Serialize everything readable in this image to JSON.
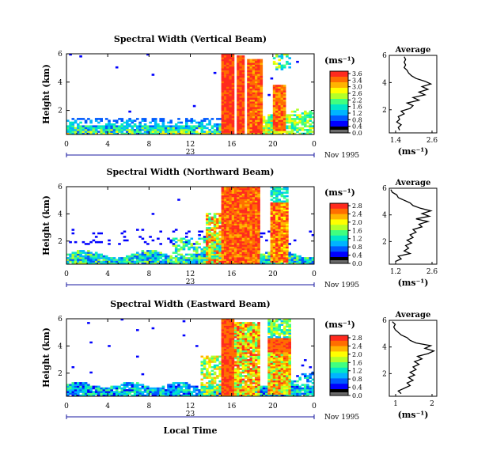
{
  "figure": {
    "date_label": "Nov 1995",
    "day_label": "23",
    "x_axis_title": "Local Time"
  },
  "chart_data": [
    {
      "type": "heatmap",
      "title": "Spectral Width (Vertical Beam)",
      "ylabel": "Height (km)",
      "xlabel": "Local Time",
      "x_ticks": [
        "0",
        "4",
        "8",
        "12",
        "16",
        "20",
        "0"
      ],
      "y_ticks": [
        "2",
        "4",
        "6"
      ],
      "xlim": [
        0,
        24
      ],
      "ylim": [
        0.3,
        6
      ],
      "colorbar": {
        "unit": "(ms⁻¹)",
        "ticks": [
          "3.6",
          "3.4",
          "3.0",
          "2.6",
          "2.2",
          "1.6",
          "1.2",
          "0.8",
          "0.4",
          "0.0"
        ]
      },
      "average": {
        "title": "Average",
        "xlabel": "(ms⁻¹)",
        "x_ticks": [
          "1.4",
          "2.6"
        ],
        "y_ticks": [
          "2",
          "4",
          "6"
        ],
        "xlim": [
          1.2,
          2.8
        ],
        "profile": [
          [
            1.55,
            0.5
          ],
          [
            1.5,
            0.7
          ],
          [
            1.6,
            0.9
          ],
          [
            1.45,
            1.1
          ],
          [
            1.55,
            1.3
          ],
          [
            1.5,
            1.5
          ],
          [
            1.7,
            1.7
          ],
          [
            1.6,
            1.9
          ],
          [
            1.9,
            2.1
          ],
          [
            2.0,
            2.3
          ],
          [
            1.8,
            2.5
          ],
          [
            2.2,
            2.7
          ],
          [
            2.0,
            2.9
          ],
          [
            2.4,
            3.1
          ],
          [
            2.2,
            3.3
          ],
          [
            2.5,
            3.5
          ],
          [
            2.3,
            3.7
          ],
          [
            2.6,
            3.9
          ],
          [
            2.4,
            4.1
          ],
          [
            2.1,
            4.3
          ],
          [
            1.95,
            4.5
          ],
          [
            1.85,
            4.7
          ],
          [
            1.8,
            4.9
          ],
          [
            1.7,
            5.1
          ],
          [
            1.75,
            5.3
          ],
          [
            1.7,
            5.5
          ],
          [
            1.75,
            5.7
          ],
          [
            1.7,
            5.9
          ]
        ]
      }
    },
    {
      "type": "heatmap",
      "title": "Spectral Width (Northward Beam)",
      "ylabel": "Height (km)",
      "xlabel": "Local Time",
      "x_ticks": [
        "0",
        "4",
        "8",
        "12",
        "16",
        "20",
        "0"
      ],
      "y_ticks": [
        "2",
        "4",
        "6"
      ],
      "xlim": [
        0,
        24
      ],
      "ylim": [
        0.3,
        6
      ],
      "colorbar": {
        "unit": "(ms⁻¹)",
        "ticks": [
          "2.8",
          "2.4",
          "2.0",
          "1.6",
          "1.2",
          "0.8",
          "0.4",
          "0.0"
        ]
      },
      "average": {
        "title": "Average",
        "xlabel": "(ms⁻¹)",
        "x_ticks": [
          "1.2",
          "2.6"
        ],
        "y_ticks": [
          "2",
          "4",
          "6"
        ],
        "xlim": [
          1.1,
          2.7
        ],
        "profile": [
          [
            1.3,
            0.5
          ],
          [
            1.5,
            0.7
          ],
          [
            1.4,
            0.9
          ],
          [
            1.8,
            1.1
          ],
          [
            1.6,
            1.3
          ],
          [
            1.75,
            1.5
          ],
          [
            1.65,
            1.7
          ],
          [
            1.85,
            1.9
          ],
          [
            1.7,
            2.1
          ],
          [
            1.9,
            2.3
          ],
          [
            1.8,
            2.5
          ],
          [
            2.0,
            2.7
          ],
          [
            1.9,
            2.9
          ],
          [
            2.2,
            3.1
          ],
          [
            2.1,
            3.3
          ],
          [
            2.4,
            3.5
          ],
          [
            2.0,
            3.7
          ],
          [
            2.45,
            3.9
          ],
          [
            2.2,
            4.1
          ],
          [
            2.5,
            4.3
          ],
          [
            2.15,
            4.5
          ],
          [
            1.9,
            4.7
          ],
          [
            1.8,
            4.9
          ],
          [
            1.6,
            5.1
          ],
          [
            1.4,
            5.3
          ],
          [
            1.35,
            5.5
          ],
          [
            1.2,
            5.7
          ],
          [
            1.15,
            5.9
          ]
        ]
      }
    },
    {
      "type": "heatmap",
      "title": "Spectral Width (Eastward Beam)",
      "ylabel": "Height (km)",
      "xlabel": "Local Time",
      "x_ticks": [
        "0",
        "4",
        "8",
        "12",
        "16",
        "20",
        "0"
      ],
      "y_ticks": [
        "2",
        "4",
        "6"
      ],
      "xlim": [
        0,
        24
      ],
      "ylim": [
        0.3,
        6
      ],
      "colorbar": {
        "unit": "(ms⁻¹)",
        "ticks": [
          "2.8",
          "2.4",
          "2.0",
          "1.6",
          "1.2",
          "0.8",
          "0.4",
          "0.0"
        ]
      },
      "average": {
        "title": "Average",
        "xlabel": "(ms⁻¹)",
        "x_ticks": [
          "1",
          "2"
        ],
        "y_ticks": [
          "2",
          "4",
          "6"
        ],
        "xlim": [
          0.9,
          2.5
        ],
        "profile": [
          [
            1.3,
            0.5
          ],
          [
            1.2,
            0.7
          ],
          [
            1.4,
            0.9
          ],
          [
            1.6,
            1.1
          ],
          [
            1.5,
            1.3
          ],
          [
            1.7,
            1.5
          ],
          [
            1.55,
            1.7
          ],
          [
            1.75,
            1.9
          ],
          [
            1.6,
            2.1
          ],
          [
            1.8,
            2.3
          ],
          [
            1.7,
            2.5
          ],
          [
            1.9,
            2.7
          ],
          [
            1.75,
            2.9
          ],
          [
            2.0,
            3.1
          ],
          [
            1.85,
            3.3
          ],
          [
            2.2,
            3.5
          ],
          [
            2.4,
            3.7
          ],
          [
            2.1,
            3.9
          ],
          [
            2.3,
            4.1
          ],
          [
            1.8,
            4.3
          ],
          [
            1.6,
            4.5
          ],
          [
            1.5,
            4.7
          ],
          [
            1.3,
            4.9
          ],
          [
            1.2,
            5.1
          ],
          [
            1.1,
            5.3
          ],
          [
            1.05,
            5.5
          ],
          [
            1.1,
            5.7
          ],
          [
            1.0,
            5.9
          ]
        ]
      }
    }
  ]
}
